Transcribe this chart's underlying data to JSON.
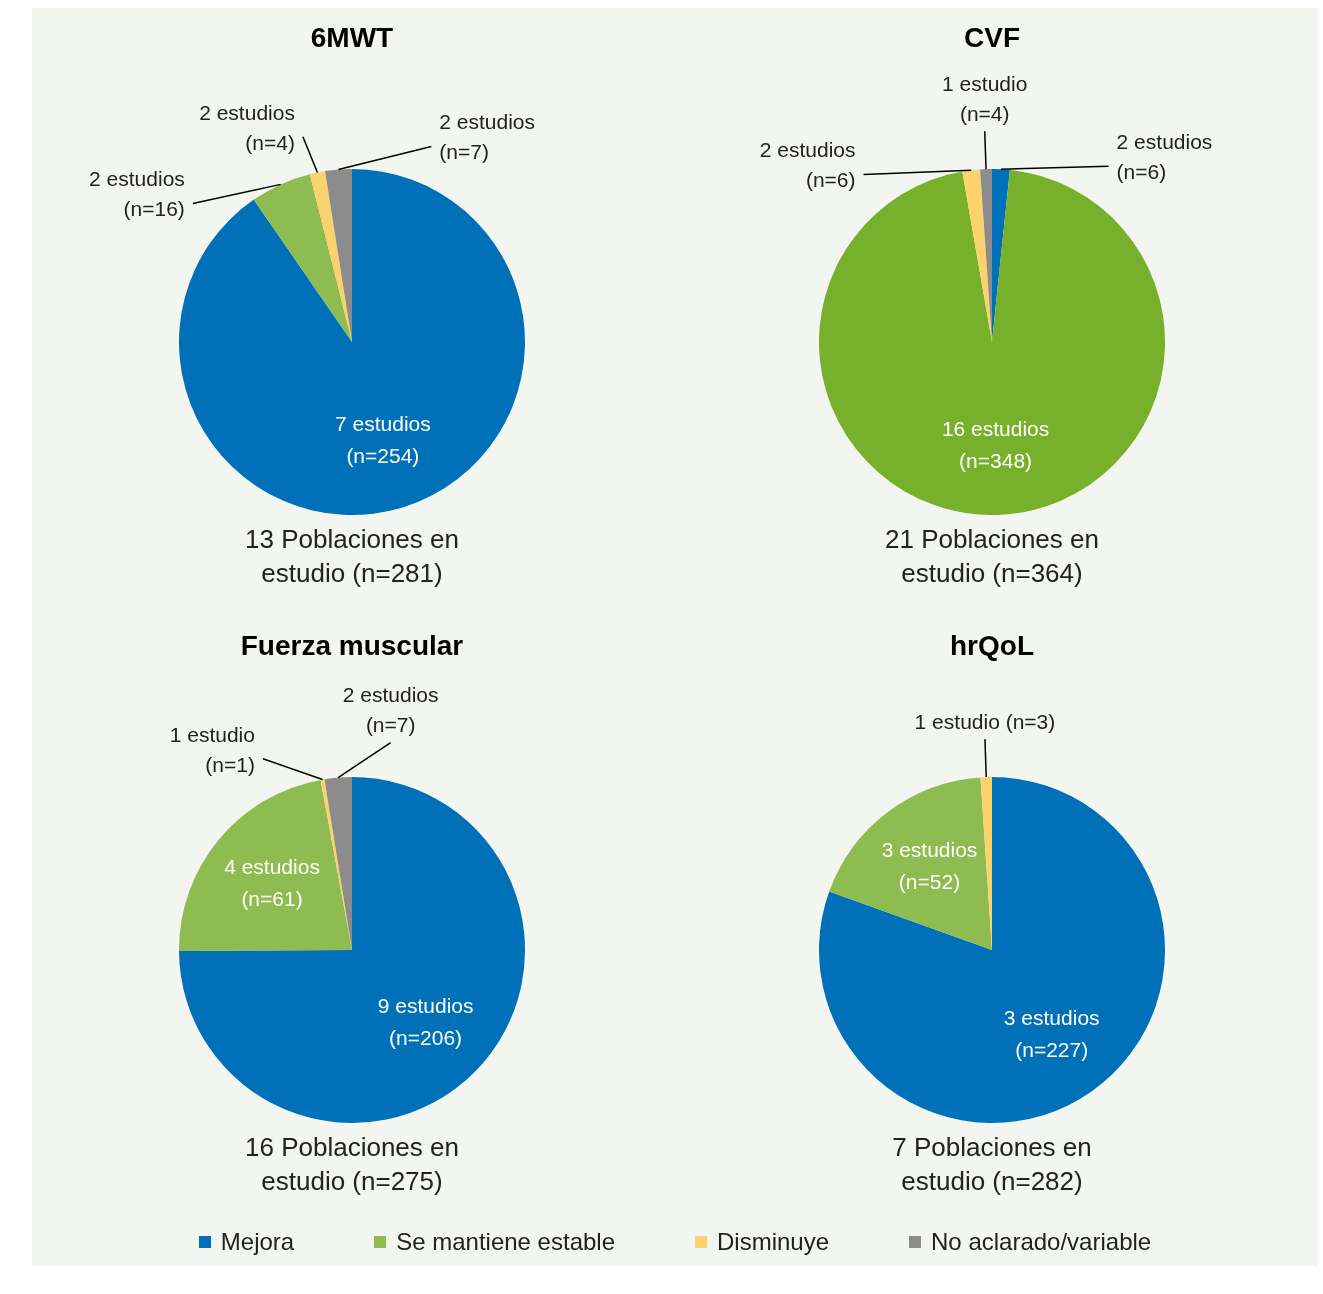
{
  "chart_data": [
    {
      "type": "pie",
      "title": "6MWT",
      "categories": [
        "Mejora",
        "Se mantiene estable",
        "Disminuye",
        "No aclarado/variable"
      ],
      "values": [
        254,
        16,
        4,
        7
      ],
      "colors": [
        "#0070b8",
        "#8fbc50",
        "#fcd26f",
        "#8c8c8c"
      ],
      "value_labels": [
        "7 estudios\n(n=254)",
        "2 estudios\n(n=16)",
        "2 estudios\n(n=4)",
        "2 estudios\n(n=7)"
      ],
      "annotations": [
        "13 Poblaciones en estudio (n=281)"
      ],
      "legend": "bottom"
    },
    {
      "type": "pie",
      "title": "CVF",
      "categories": [
        null,
        null,
        null,
        null
      ],
      "values": [
        6,
        348,
        6,
        4
      ],
      "colors": [
        "#0070b8",
        "#77b02a",
        "#fcd26f",
        "#8c8c8c"
      ],
      "value_labels": [
        "2 estudios\n(n=6)",
        "16 estudios\n(n=348)",
        "2 estudios\n(n=6)",
        "1 estudio\n(n=4)"
      ],
      "annotations": [
        "21 Poblaciones en estudio (n=364)"
      ]
    },
    {
      "type": "pie",
      "title": "Fuerza muscular",
      "categories": [
        null,
        null,
        null,
        null
      ],
      "values": [
        206,
        61,
        1,
        7
      ],
      "colors": [
        "#0070b8",
        "#8fbc50",
        "#fcd26f",
        "#8c8c8c"
      ],
      "value_labels": [
        "9 estudios\n(n=206)",
        "4 estudios\n(n=61)",
        "1 estudio\n(n=1)",
        "2 estudios\n(n=7)"
      ],
      "annotations": [
        "16 Poblaciones en estudio (n=275)"
      ]
    },
    {
      "type": "pie",
      "title": "hrQoL",
      "categories": [
        null,
        null,
        null
      ],
      "values": [
        227,
        52,
        3
      ],
      "colors": [
        "#0070b8",
        "#8fbc50",
        "#fcd26f"
      ],
      "value_labels": [
        "3 estudios\n(n=227)",
        "3 estudios\n(n=52)",
        "1 estudio (n=3)"
      ],
      "annotations": [
        "7 Poblaciones en estudio (n=282)"
      ]
    }
  ]
}
